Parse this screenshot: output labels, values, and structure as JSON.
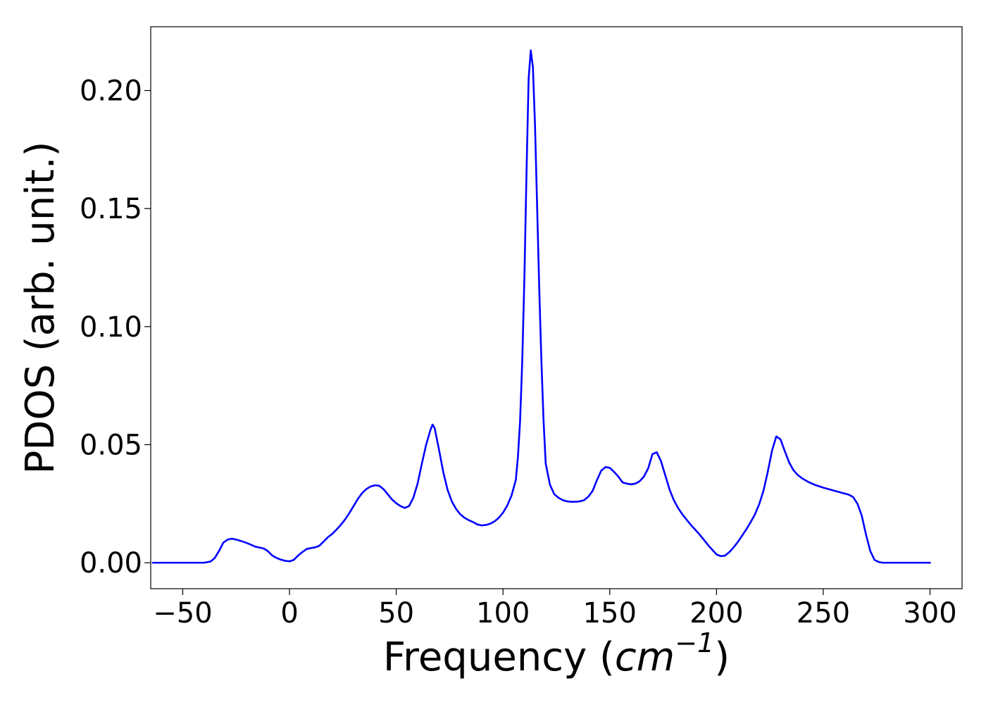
{
  "chart_data": {
    "type": "line",
    "title": "",
    "xlabel_text": "Frequency (",
    "xlabel_math_base": "cm",
    "xlabel_math_sup": "−1",
    "xlabel_close": ")",
    "ylabel": "PDOS (arb. unit.)",
    "xlim": [
      -65,
      315
    ],
    "ylim": [
      -0.011,
      0.227
    ],
    "xticks": [
      -50,
      0,
      50,
      100,
      150,
      200,
      250,
      300
    ],
    "xtick_labels": [
      "−50",
      "0",
      "50",
      "100",
      "150",
      "200",
      "250",
      "300"
    ],
    "yticks": [
      0.0,
      0.05,
      0.1,
      0.15,
      0.2
    ],
    "ytick_labels": [
      "0.00",
      "0.05",
      "0.10",
      "0.15",
      "0.20"
    ],
    "grid": false,
    "legend": "none",
    "series": [
      {
        "color": "#0000ff",
        "x": [
          -64,
          -50,
          -40,
          -37,
          -35,
          -33,
          -31,
          -29,
          -27,
          -25,
          -22,
          -19,
          -16,
          -14,
          -12,
          -10,
          -8,
          -6,
          -4,
          -2,
          0,
          2,
          4,
          6,
          8,
          10,
          12,
          14,
          16,
          18,
          20,
          22,
          24,
          26,
          28,
          30,
          32,
          34,
          36,
          38,
          40,
          42,
          44,
          46,
          48,
          50,
          52,
          54,
          56,
          58,
          60,
          62,
          64,
          66,
          67,
          68,
          70,
          72,
          74,
          76,
          78,
          80,
          82,
          84,
          86,
          88,
          90,
          92,
          94,
          96,
          98,
          100,
          102,
          104,
          106,
          107,
          108,
          109,
          110,
          111,
          112,
          113,
          114,
          115,
          116,
          117,
          118,
          119,
          120,
          122,
          124,
          126,
          128,
          130,
          132,
          134,
          136,
          138,
          140,
          142,
          144,
          146,
          148,
          150,
          152,
          154,
          156,
          158,
          160,
          162,
          164,
          166,
          168,
          170,
          172,
          174,
          176,
          178,
          180,
          182,
          184,
          186,
          188,
          190,
          192,
          194,
          196,
          198,
          200,
          202,
          204,
          206,
          208,
          210,
          212,
          214,
          216,
          218,
          220,
          222,
          224,
          226,
          228,
          230,
          232,
          234,
          236,
          238,
          240,
          243,
          246,
          250,
          254,
          258,
          262,
          264,
          266,
          268,
          270,
          272,
          274,
          276,
          278,
          282,
          290,
          300
        ],
        "y": [
          0.0,
          0.0,
          0.0,
          0.0005,
          0.002,
          0.005,
          0.0085,
          0.0098,
          0.0102,
          0.0098,
          0.009,
          0.008,
          0.0068,
          0.0064,
          0.006,
          0.0048,
          0.003,
          0.002,
          0.0013,
          0.0008,
          0.0006,
          0.0012,
          0.003,
          0.0045,
          0.0058,
          0.0062,
          0.0065,
          0.0072,
          0.009,
          0.0108,
          0.0122,
          0.014,
          0.016,
          0.0183,
          0.021,
          0.024,
          0.027,
          0.0295,
          0.0312,
          0.0323,
          0.0328,
          0.0326,
          0.0312,
          0.029,
          0.0268,
          0.0252,
          0.024,
          0.0232,
          0.024,
          0.0275,
          0.0335,
          0.042,
          0.05,
          0.0562,
          0.0585,
          0.057,
          0.048,
          0.0385,
          0.031,
          0.026,
          0.0228,
          0.0205,
          0.019,
          0.018,
          0.0172,
          0.0162,
          0.0158,
          0.016,
          0.0165,
          0.0175,
          0.019,
          0.0212,
          0.0242,
          0.0285,
          0.035,
          0.045,
          0.06,
          0.085,
          0.12,
          0.165,
          0.205,
          0.217,
          0.21,
          0.185,
          0.15,
          0.115,
          0.085,
          0.06,
          0.042,
          0.033,
          0.029,
          0.0275,
          0.0265,
          0.026,
          0.0258,
          0.0258,
          0.026,
          0.0265,
          0.028,
          0.0305,
          0.035,
          0.039,
          0.0405,
          0.0402,
          0.0385,
          0.0365,
          0.034,
          0.0335,
          0.0332,
          0.0335,
          0.0345,
          0.0365,
          0.04,
          0.046,
          0.0468,
          0.043,
          0.037,
          0.031,
          0.0265,
          0.0232,
          0.0205,
          0.0182,
          0.016,
          0.014,
          0.012,
          0.0098,
          0.0075,
          0.0055,
          0.0035,
          0.0028,
          0.003,
          0.0045,
          0.0065,
          0.0088,
          0.0115,
          0.0142,
          0.0172,
          0.0205,
          0.0248,
          0.0305,
          0.0385,
          0.0475,
          0.0535,
          0.0522,
          0.0472,
          0.0425,
          0.0392,
          0.0372,
          0.0358,
          0.0342,
          0.033,
          0.0318,
          0.0308,
          0.0298,
          0.0288,
          0.0278,
          0.025,
          0.02,
          0.012,
          0.005,
          0.0012,
          0.0003,
          0.0,
          0.0,
          0.0,
          0.0
        ]
      }
    ]
  }
}
